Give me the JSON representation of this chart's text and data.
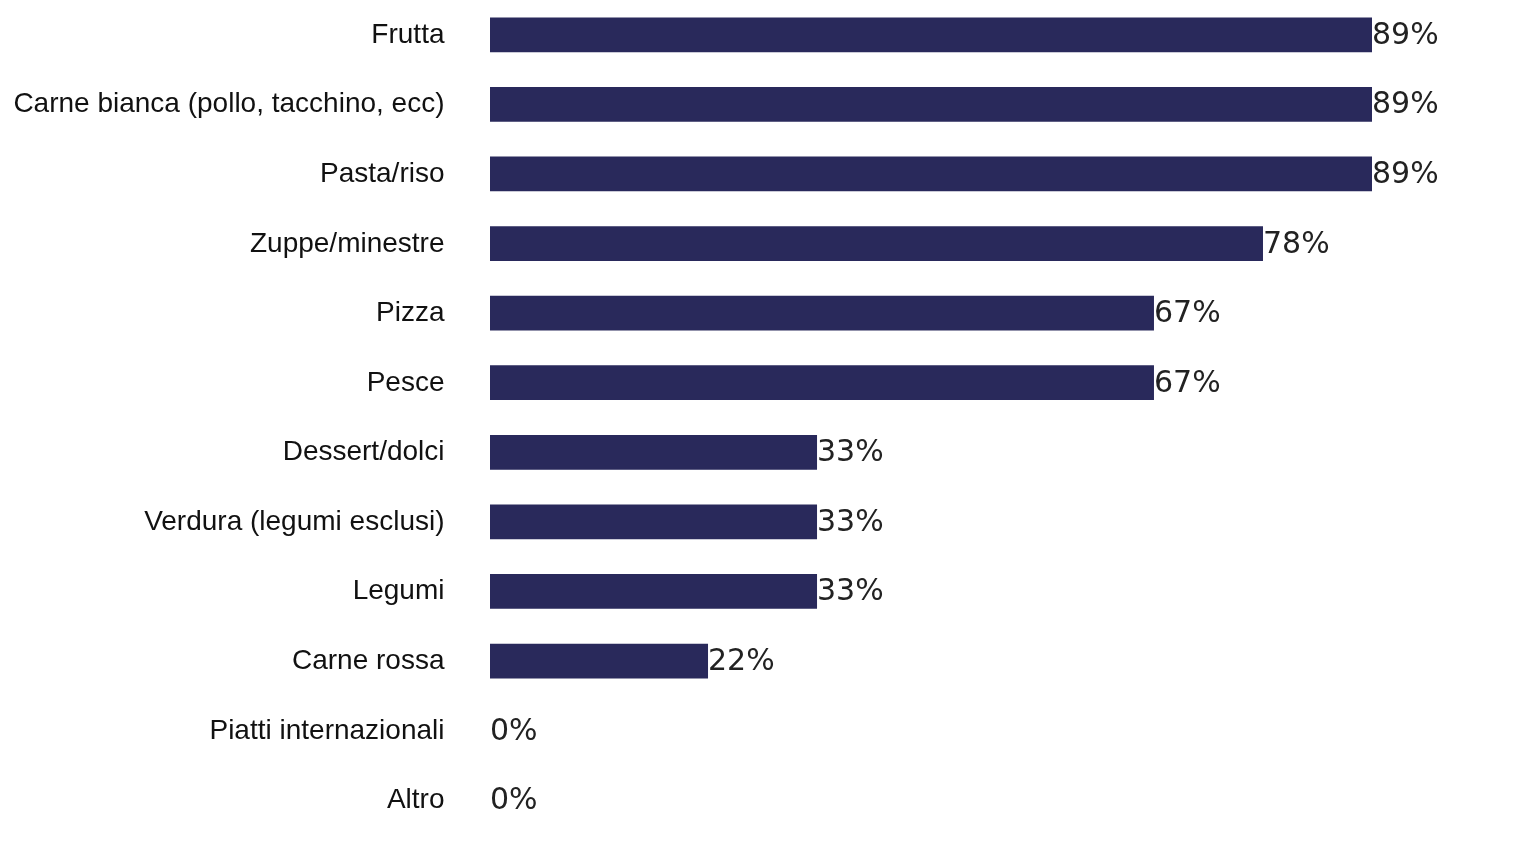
{
  "chart_data": {
    "type": "bar",
    "orientation": "horizontal",
    "categories": [
      "Frutta",
      "Carne bianca (pollo, tacchino, ecc)",
      "Pasta/riso",
      "Zuppe/minestre",
      "Pizza",
      "Pesce",
      "Dessert/dolci",
      "Verdura (legumi esclusi)",
      "Legumi",
      "Carne rossa",
      "Piatti internazionali",
      "Altro"
    ],
    "values": [
      89,
      89,
      89,
      78,
      67,
      67,
      33,
      33,
      33,
      22,
      0,
      0
    ],
    "value_labels": [
      "89%",
      "89%",
      "89%",
      "78%",
      "67%",
      "67%",
      "33%",
      "33%",
      "33%",
      "22%",
      "0%",
      "0%"
    ],
    "color": "#29295b"
  }
}
